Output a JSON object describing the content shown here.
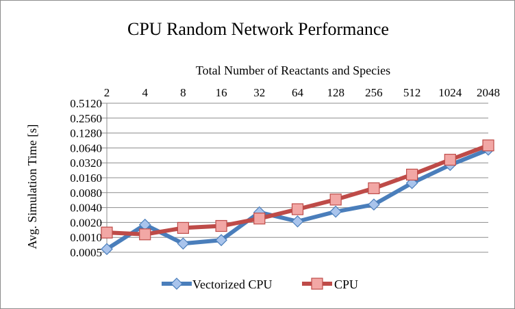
{
  "chart_data": {
    "type": "line",
    "title": "CPU Random Network Performance",
    "xlabel": "Total Number of Reactants and Species",
    "ylabel": "Avg. Simulation Time [s]",
    "x_axis_position": "top",
    "y_scale": "log2",
    "ylim": [
      0.0005,
      0.512
    ],
    "y_ticks": [
      "0.0005",
      "0.0010",
      "0.0020",
      "0.0040",
      "0.0080",
      "0.0160",
      "0.0320",
      "0.0640",
      "0.1280",
      "0.2560",
      "0.5120"
    ],
    "grid": "horizontal",
    "legend_position": "bottom",
    "categories": [
      "2",
      "4",
      "8",
      "16",
      "32",
      "64",
      "128",
      "256",
      "512",
      "1024",
      "2048"
    ],
    "series": [
      {
        "name": "Vectorized CPU",
        "color": "#4a7ebb",
        "marker_fill": "#a9c4ec",
        "marker": "diamond",
        "values": [
          0.00058,
          0.0018,
          0.00075,
          0.00088,
          0.0032,
          0.0021,
          0.0033,
          0.0046,
          0.0125,
          0.029,
          0.059
        ]
      },
      {
        "name": "CPU",
        "color": "#be4b48",
        "marker_fill": "#f2a7a5",
        "marker": "square",
        "values": [
          0.00125,
          0.00115,
          0.00155,
          0.0017,
          0.0024,
          0.0037,
          0.0058,
          0.0098,
          0.0185,
          0.037,
          0.072
        ]
      }
    ]
  }
}
